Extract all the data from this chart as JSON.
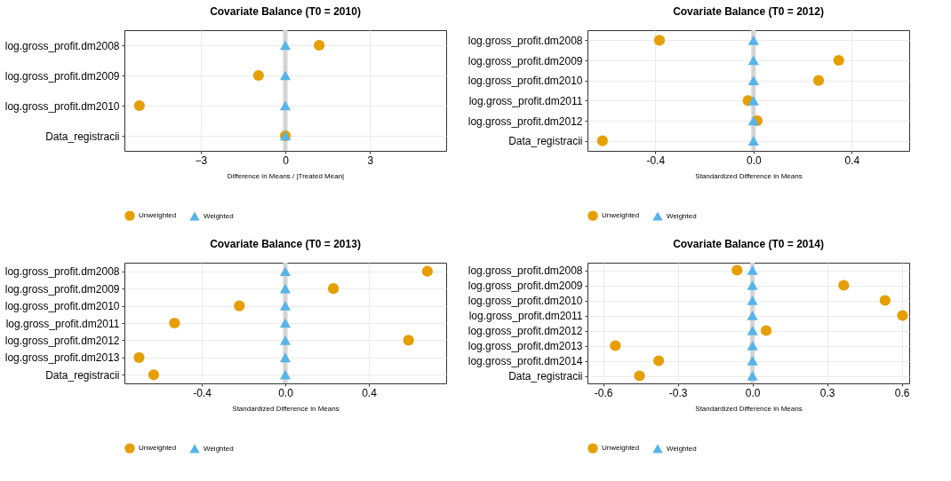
{
  "chart_data": [
    {
      "type": "scatter",
      "orientation": "horizontal",
      "title": "Covariate Balance (T0 = 2010)",
      "xlabel": "Difference in Means / |Treated Mean|",
      "categories": [
        "log.gross_profit.dm2008",
        "log.gross_profit.dm2009",
        "log.gross_profit.dm2010",
        "Data_registracii"
      ],
      "xlim": [
        -5.7,
        5.7
      ],
      "xticks": [
        -3,
        0,
        3
      ],
      "grid": true,
      "legend": "bottom",
      "ref_lines": [
        {
          "axis": "x",
          "value": 0,
          "color": "#d4d4d4"
        }
      ],
      "series": [
        {
          "name": "Unweighted",
          "color": "#e69f00",
          "marker": "circle",
          "values": [
            1.2,
            -0.95,
            -5.17,
            0
          ]
        },
        {
          "name": "Weighted",
          "color": "#56b4e9",
          "marker": "triangle",
          "values": [
            0,
            0,
            0,
            0
          ]
        }
      ]
    },
    {
      "type": "scatter",
      "orientation": "horizontal",
      "title": "Covariate Balance (T0 = 2012)",
      "xlabel": "Standardized Difference in Means",
      "categories": [
        "log.gross_profit.dm2008",
        "log.gross_profit.dm2009",
        "log.gross_profit.dm2010",
        "log.gross_profit.dm2011",
        "log.gross_profit.dm2012",
        "Data_registracii"
      ],
      "xlim": [
        -0.676,
        0.634
      ],
      "xticks": [
        {
          "value": -0.4,
          "label": "-0.4"
        },
        {
          "value": 0,
          "label": "0.0"
        },
        {
          "value": 0.4,
          "label": "0.4"
        }
      ],
      "grid": true,
      "legend": "bottom",
      "ref_lines": [
        {
          "axis": "x",
          "value": 0,
          "color": "#d4d4d4"
        }
      ],
      "series": [
        {
          "name": "Unweighted",
          "color": "#e69f00",
          "marker": "circle",
          "values": [
            -0.383,
            0.347,
            0.265,
            -0.022,
            0.015,
            -0.615
          ]
        },
        {
          "name": "Weighted",
          "color": "#56b4e9",
          "marker": "triangle",
          "values": [
            0,
            0,
            0,
            0,
            0,
            0
          ]
        }
      ]
    },
    {
      "type": "scatter",
      "orientation": "horizontal",
      "title": "Covariate Balance (T0 = 2013)",
      "xlabel": "Standardized Difference in Means",
      "categories": [
        "log.gross_profit.dm2008",
        "log.gross_profit.dm2009",
        "log.gross_profit.dm2010",
        "log.gross_profit.dm2011",
        "log.gross_profit.dm2012",
        "log.gross_profit.dm2013",
        "Data_registracii"
      ],
      "xlim": [
        -0.77,
        0.77
      ],
      "xticks": [
        {
          "value": -0.4,
          "label": "-0.4"
        },
        {
          "value": 0,
          "label": "0.0"
        },
        {
          "value": 0.4,
          "label": "0.4"
        }
      ],
      "grid": true,
      "legend": "bottom",
      "ref_lines": [
        {
          "axis": "x",
          "value": 0,
          "color": "#d4d4d4"
        }
      ],
      "series": [
        {
          "name": "Unweighted",
          "color": "#e69f00",
          "marker": "circle",
          "values": [
            0.68,
            0.23,
            -0.22,
            -0.53,
            0.59,
            -0.7,
            -0.63
          ]
        },
        {
          "name": "Weighted",
          "color": "#56b4e9",
          "marker": "triangle",
          "values": [
            0,
            0,
            0,
            0,
            0,
            0,
            0
          ]
        }
      ]
    },
    {
      "type": "scatter",
      "orientation": "horizontal",
      "title": "Covariate Balance (T0 = 2014)",
      "xlabel": "Standardized Difference in Means",
      "categories": [
        "log.gross_profit.dm2008",
        "log.gross_profit.dm2009",
        "log.gross_profit.dm2010",
        "log.gross_profit.dm2011",
        "log.gross_profit.dm2012",
        "log.gross_profit.dm2013",
        "log.gross_profit.dm2014",
        "Data_registracii"
      ],
      "xlim": [
        -0.663,
        0.63
      ],
      "xticks": [
        {
          "value": -0.6,
          "label": "-0.6"
        },
        {
          "value": -0.3,
          "label": "-0.3"
        },
        {
          "value": 0,
          "label": "0.0"
        },
        {
          "value": 0.3,
          "label": "0.3"
        },
        {
          "value": 0.6,
          "label": "0.6"
        }
      ],
      "grid": true,
      "legend": "bottom",
      "ref_lines": [
        {
          "axis": "x",
          "value": 0,
          "color": "#d4d4d4"
        }
      ],
      "series": [
        {
          "name": "Unweighted",
          "color": "#e69f00",
          "marker": "circle",
          "values": [
            -0.062,
            0.367,
            0.533,
            0.603,
            0.055,
            -0.551,
            -0.377,
            -0.454
          ]
        },
        {
          "name": "Weighted",
          "color": "#56b4e9",
          "marker": "triangle",
          "values": [
            0,
            0,
            0,
            0,
            0,
            0,
            0,
            0
          ]
        }
      ]
    }
  ]
}
